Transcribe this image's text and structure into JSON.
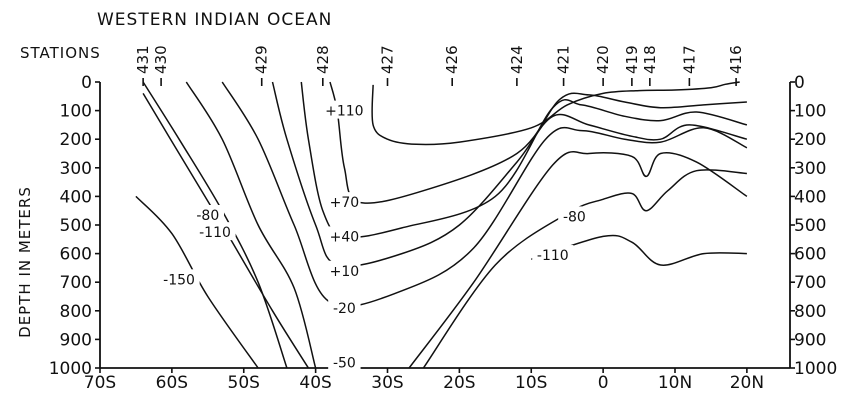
{
  "chart_data": {
    "type": "line",
    "title": "WESTERN INDIAN OCEAN",
    "stations_label": "STATIONS",
    "ylabel": "DEPTH IN METERS",
    "xlabel": "",
    "x_ticks": [
      "70S",
      "60S",
      "50S",
      "40S",
      "30S",
      "20S",
      "10S",
      "0",
      "10N",
      "20N"
    ],
    "y_ticks": [
      "0",
      "100",
      "200",
      "300",
      "400",
      "500",
      "600",
      "700",
      "800",
      "900",
      "1000"
    ],
    "y_ticks_left": [
      "0",
      "100",
      "200",
      "300",
      "400",
      "500",
      "600",
      "700",
      "800",
      "900",
      "1000"
    ],
    "y_ticks_left_bottom": "1000",
    "x_range": [
      -70,
      26
    ],
    "y_range": [
      0,
      1000
    ],
    "y_inverted": true,
    "stations": [
      {
        "name": "431",
        "lat": -64
      },
      {
        "name": "430",
        "lat": -61.5
      },
      {
        "name": "429",
        "lat": -47.5
      },
      {
        "name": "428",
        "lat": -39
      },
      {
        "name": "427",
        "lat": -30
      },
      {
        "name": "426",
        "lat": -21
      },
      {
        "name": "424",
        "lat": -12
      },
      {
        "name": "421",
        "lat": -5.5
      },
      {
        "name": "420",
        "lat": 0
      },
      {
        "name": "419",
        "lat": 4
      },
      {
        "name": "418",
        "lat": 6.5
      },
      {
        "name": "417",
        "lat": 12
      },
      {
        "name": "416",
        "lat": 18.5
      }
    ],
    "series": [
      {
        "name": "+110",
        "label_at": [
          -36,
          100
        ],
        "points": [
          [
            -32,
            10
          ],
          [
            -32,
            150
          ],
          [
            -30,
            200
          ],
          [
            -26,
            218
          ],
          [
            -20,
            210
          ],
          [
            -10,
            160
          ],
          [
            -5,
            80
          ],
          [
            0,
            40
          ],
          [
            5,
            30
          ],
          [
            10,
            28
          ],
          [
            15,
            20
          ],
          [
            17,
            8
          ],
          [
            19,
            0
          ]
        ]
      },
      {
        "name": "+70",
        "label_at": [
          -36,
          420
        ],
        "points": [
          [
            -38,
            0
          ],
          [
            -37,
            100
          ],
          [
            -36,
            300
          ],
          [
            -34,
            420
          ],
          [
            -25,
            380
          ],
          [
            -12,
            250
          ],
          [
            -6,
            60
          ],
          [
            -2,
            45
          ],
          [
            3,
            70
          ],
          [
            8,
            90
          ],
          [
            14,
            80
          ],
          [
            20,
            70
          ]
        ]
      },
      {
        "name": "+40",
        "label_at": [
          -36,
          540
        ],
        "points": [
          [
            -42,
            0
          ],
          [
            -41,
            200
          ],
          [
            -39,
            450
          ],
          [
            -36,
            540
          ],
          [
            -28,
            510
          ],
          [
            -15,
            400
          ],
          [
            -7,
            90
          ],
          [
            -3,
            80
          ],
          [
            3,
            120
          ],
          [
            8,
            135
          ],
          [
            13,
            105
          ],
          [
            20,
            150
          ]
        ]
      },
      {
        "name": "+10",
        "label_at": [
          -36,
          660
        ],
        "points": [
          [
            -46,
            0
          ],
          [
            -44,
            200
          ],
          [
            -40,
            500
          ],
          [
            -37,
            640
          ],
          [
            -28,
            600
          ],
          [
            -20,
            500
          ],
          [
            -12,
            280
          ],
          [
            -7,
            120
          ],
          [
            -2,
            150
          ],
          [
            4,
            190
          ],
          [
            8,
            200
          ],
          [
            12,
            150
          ],
          [
            20,
            200
          ]
        ]
      },
      {
        "name": "-20",
        "label_at": [
          -36,
          790
        ],
        "points": [
          [
            -53,
            0
          ],
          [
            -48,
            200
          ],
          [
            -43,
            500
          ],
          [
            -38,
            770
          ],
          [
            -28,
            730
          ],
          [
            -18,
            580
          ],
          [
            -8,
            200
          ],
          [
            -3,
            170
          ],
          [
            3,
            200
          ],
          [
            8,
            210
          ],
          [
            14,
            160
          ],
          [
            20,
            230
          ]
        ]
      },
      {
        "name": "-50",
        "label_at": [
          -36,
          980
        ],
        "points": [
          [
            -58,
            0
          ],
          [
            -53,
            200
          ],
          [
            -48,
            500
          ],
          [
            -43,
            720
          ],
          [
            -40,
            1000
          ]
        ]
      },
      {
        "name": "-50 (north)",
        "label_at": null,
        "points": [
          [
            -27,
            1000
          ],
          [
            -18,
            700
          ],
          [
            -7,
            290
          ],
          [
            -2,
            250
          ],
          [
            4,
            260
          ],
          [
            6,
            330
          ],
          [
            8,
            250
          ],
          [
            13,
            280
          ],
          [
            20,
            400
          ]
        ]
      },
      {
        "name": "-80",
        "label_at": [
          -55,
          465
        ],
        "points": [
          [
            -64,
            0
          ],
          [
            -59,
            200
          ],
          [
            -53,
            450
          ],
          [
            -48,
            700
          ],
          [
            -44,
            1000
          ]
        ]
      },
      {
        "name": "-80 (north)",
        "label_at": [
          -4,
          470
        ],
        "points": [
          [
            -25,
            1000
          ],
          [
            -15,
            640
          ],
          [
            -5,
            460
          ],
          [
            0,
            410
          ],
          [
            4,
            390
          ],
          [
            6,
            450
          ],
          [
            9,
            380
          ],
          [
            13,
            310
          ],
          [
            20,
            320
          ]
        ]
      },
      {
        "name": "-110",
        "label_at": [
          -54,
          525
        ],
        "points": [
          [
            -64,
            40
          ],
          [
            -59,
            250
          ],
          [
            -53,
            500
          ],
          [
            -46,
            800
          ],
          [
            -41,
            1000
          ]
        ]
      },
      {
        "name": "-110 (north)",
        "label_at": [
          -7,
          605
        ],
        "points": [
          [
            -10,
            620
          ],
          [
            0,
            540
          ],
          [
            4,
            560
          ],
          [
            8,
            640
          ],
          [
            14,
            600
          ],
          [
            20,
            600
          ]
        ]
      },
      {
        "name": "-150",
        "label_at": [
          -59,
          690
        ],
        "points": [
          [
            -65,
            400
          ],
          [
            -60,
            530
          ],
          [
            -55,
            750
          ],
          [
            -48,
            1000
          ]
        ]
      }
    ]
  }
}
